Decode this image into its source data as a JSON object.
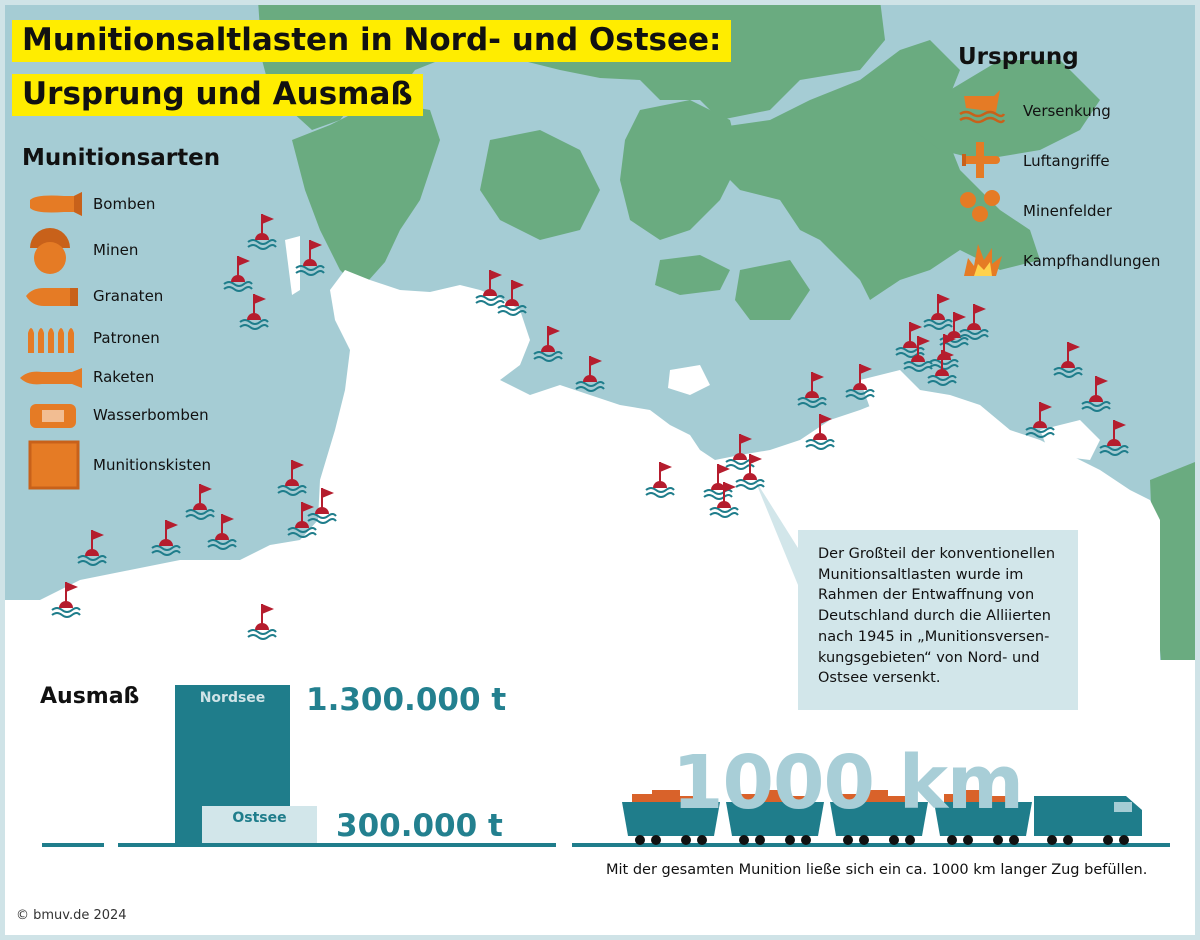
{
  "title": {
    "line1": "Munitionsaltlasten in Nord- und Ostsee:",
    "line2": "Ursprung und Ausmaß"
  },
  "munitionsarten": {
    "heading": "Munitionsarten",
    "items": [
      {
        "label": "Bomben",
        "icon": "bomb-icon"
      },
      {
        "label": "Minen",
        "icon": "sea-mine-icon"
      },
      {
        "label": "Granaten",
        "icon": "shell-icon"
      },
      {
        "label": "Patronen",
        "icon": "cartridges-icon"
      },
      {
        "label": "Raketen",
        "icon": "rocket-icon"
      },
      {
        "label": "Wasserbomben",
        "icon": "depth-charge-icon"
      },
      {
        "label": "Munitionskisten",
        "icon": "ammo-box-icon"
      }
    ]
  },
  "ursprung": {
    "heading": "Ursprung",
    "items": [
      {
        "label": "Versenkung",
        "icon": "sinking-ship-icon"
      },
      {
        "label": "Luftangriffe",
        "icon": "airplane-icon"
      },
      {
        "label": "Minenfelder",
        "icon": "mine-field-icon"
      },
      {
        "label": "Kampfhandlungen",
        "icon": "explosion-icon"
      }
    ]
  },
  "callout": {
    "lines": [
      "Der Großteil der konventionellen",
      "Munitionsaltlasten wurde im",
      "Rahmen der Entwaffnung von",
      "Deutschland durch die Alliierten",
      "nach 1945 in „Munitionsversen-",
      "kungsgebieten“ von Nord- und",
      "Ostsee versenkt."
    ]
  },
  "ausmass": {
    "heading": "Ausmaß",
    "bars": [
      {
        "label": "Nordsee",
        "amount": "1.300.000 t",
        "value": 1300000
      },
      {
        "label": "Ostsee",
        "amount": "300.000 t",
        "value": 300000
      }
    ]
  },
  "train": {
    "distance": "1000 km",
    "caption": "Mit der gesamten Munition ließe sich ein ca. 1000 km langer Zug befüllen."
  },
  "copyright": "© bmuv.de 2024",
  "colors": {
    "sea": "#a5ccd4",
    "land": "#6aab80",
    "germany": "#ffffff",
    "highlight": "#ffed00",
    "teal": "#1f7d8b",
    "orange": "#e57b25",
    "flag": "#b51d2e"
  }
}
